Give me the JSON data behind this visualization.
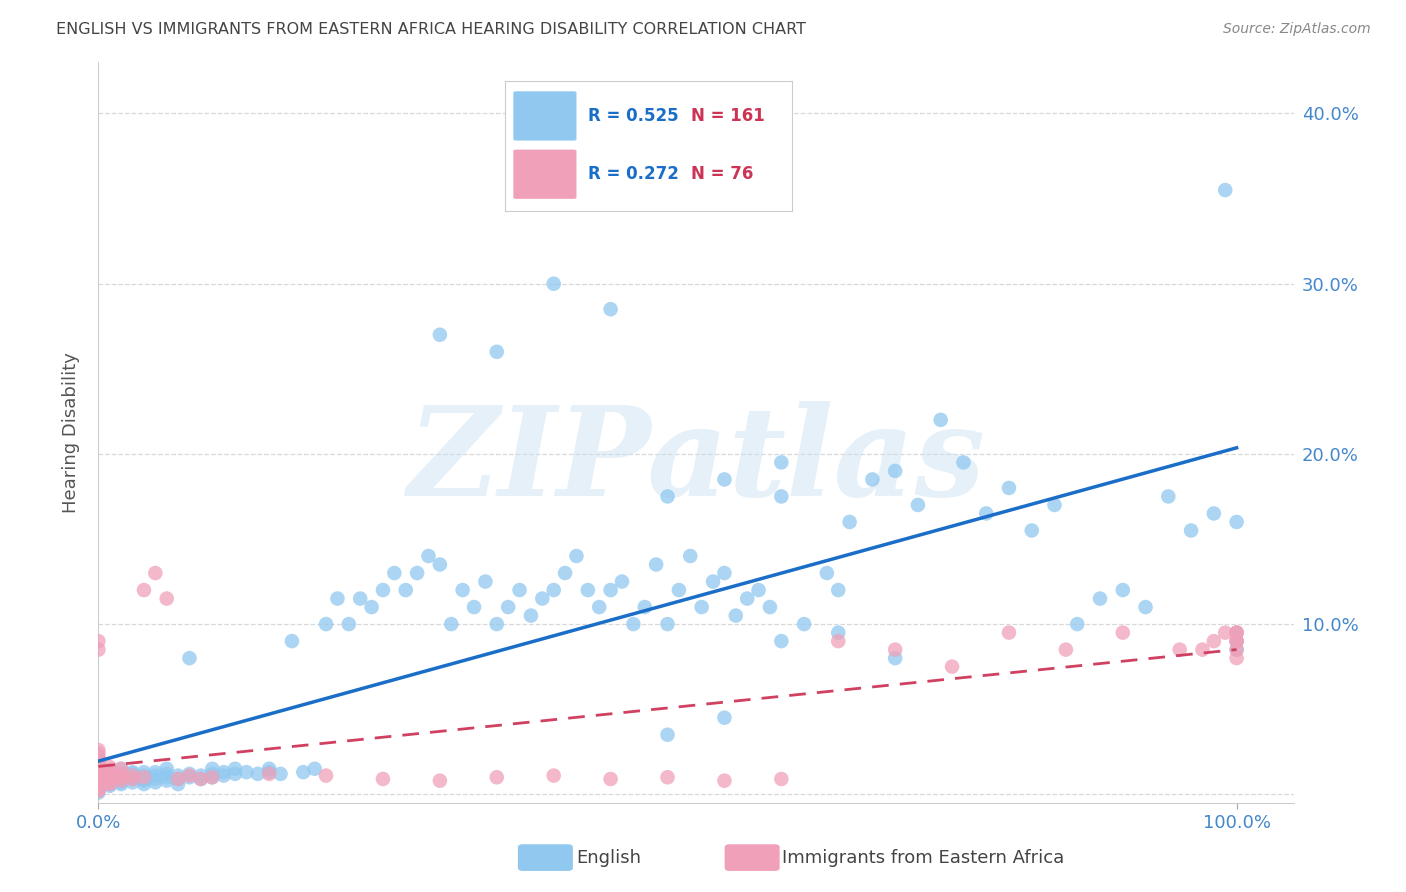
{
  "title": "ENGLISH VS IMMIGRANTS FROM EASTERN AFRICA HEARING DISABILITY CORRELATION CHART",
  "source": "Source: ZipAtlas.com",
  "ylabel": "Hearing Disability",
  "watermark_text": "ZIPatlas",
  "xlim": [
    0.0,
    1.05
  ],
  "ylim": [
    -0.005,
    0.43
  ],
  "yticks": [
    0.0,
    0.1,
    0.2,
    0.3,
    0.4
  ],
  "ytick_labels": [
    "",
    "10.0%",
    "20.0%",
    "30.0%",
    "40.0%"
  ],
  "english_R": 0.525,
  "english_N": 161,
  "immigrants_R": 0.272,
  "immigrants_N": 76,
  "english_color": "#90c8f0",
  "english_line_color": "#1a6ec8",
  "immigrants_color": "#f0a0b8",
  "immigrants_line_color": "#d04060",
  "title_color": "#444444",
  "tick_color": "#4488cc",
  "background_color": "#ffffff",
  "grid_color": "#d8d8d8",
  "english_x": [
    0.0,
    0.0,
    0.0,
    0.0,
    0.0,
    0.0,
    0.0,
    0.0,
    0.0,
    0.0,
    0.0,
    0.0,
    0.0,
    0.0,
    0.0,
    0.0,
    0.0,
    0.0,
    0.0,
    0.0,
    0.01,
    0.01,
    0.01,
    0.01,
    0.01,
    0.01,
    0.01,
    0.01,
    0.01,
    0.01,
    0.02,
    0.02,
    0.02,
    0.02,
    0.02,
    0.02,
    0.02,
    0.02,
    0.03,
    0.03,
    0.03,
    0.03,
    0.03,
    0.03,
    0.04,
    0.04,
    0.04,
    0.04,
    0.04,
    0.05,
    0.05,
    0.05,
    0.05,
    0.06,
    0.06,
    0.06,
    0.06,
    0.07,
    0.07,
    0.07,
    0.08,
    0.08,
    0.08,
    0.09,
    0.09,
    0.1,
    0.1,
    0.1,
    0.11,
    0.11,
    0.12,
    0.12,
    0.13,
    0.14,
    0.15,
    0.15,
    0.16,
    0.17,
    0.18,
    0.19,
    0.2,
    0.21,
    0.22,
    0.23,
    0.24,
    0.25,
    0.26,
    0.27,
    0.28,
    0.29,
    0.3,
    0.31,
    0.32,
    0.33,
    0.34,
    0.35,
    0.36,
    0.37,
    0.38,
    0.39,
    0.4,
    0.41,
    0.42,
    0.43,
    0.44,
    0.45,
    0.46,
    0.47,
    0.48,
    0.49,
    0.5,
    0.51,
    0.52,
    0.53,
    0.54,
    0.55,
    0.56,
    0.57,
    0.58,
    0.59,
    0.6,
    0.62,
    0.64,
    0.65,
    0.66,
    0.68,
    0.7,
    0.72,
    0.74,
    0.76,
    0.78,
    0.8,
    0.82,
    0.84,
    0.86,
    0.88,
    0.9,
    0.92,
    0.94,
    0.96,
    0.98,
    0.99,
    1.0,
    1.0,
    1.0,
    1.0,
    0.5,
    0.55,
    0.6,
    0.65,
    0.7,
    0.3,
    0.35,
    0.4,
    0.45,
    0.5,
    0.55,
    0.6
  ],
  "english_y": [
    0.005,
    0.008,
    0.01,
    0.012,
    0.015,
    0.007,
    0.009,
    0.011,
    0.006,
    0.013,
    0.003,
    0.004,
    0.016,
    0.018,
    0.002,
    0.014,
    0.019,
    0.001,
    0.017,
    0.02,
    0.007,
    0.009,
    0.011,
    0.013,
    0.006,
    0.008,
    0.01,
    0.012,
    0.005,
    0.014,
    0.008,
    0.01,
    0.012,
    0.015,
    0.007,
    0.009,
    0.011,
    0.006,
    0.007,
    0.01,
    0.012,
    0.009,
    0.011,
    0.013,
    0.008,
    0.011,
    0.013,
    0.009,
    0.006,
    0.009,
    0.011,
    0.013,
    0.007,
    0.008,
    0.01,
    0.012,
    0.015,
    0.009,
    0.011,
    0.006,
    0.08,
    0.01,
    0.012,
    0.009,
    0.011,
    0.01,
    0.012,
    0.015,
    0.011,
    0.013,
    0.012,
    0.015,
    0.013,
    0.012,
    0.013,
    0.015,
    0.012,
    0.09,
    0.013,
    0.015,
    0.1,
    0.115,
    0.1,
    0.115,
    0.11,
    0.12,
    0.13,
    0.12,
    0.13,
    0.14,
    0.135,
    0.1,
    0.12,
    0.11,
    0.125,
    0.1,
    0.11,
    0.12,
    0.105,
    0.115,
    0.12,
    0.13,
    0.14,
    0.12,
    0.11,
    0.12,
    0.125,
    0.1,
    0.11,
    0.135,
    0.1,
    0.12,
    0.14,
    0.11,
    0.125,
    0.13,
    0.105,
    0.115,
    0.12,
    0.11,
    0.175,
    0.1,
    0.13,
    0.12,
    0.16,
    0.185,
    0.19,
    0.17,
    0.22,
    0.195,
    0.165,
    0.18,
    0.155,
    0.17,
    0.1,
    0.115,
    0.12,
    0.11,
    0.175,
    0.155,
    0.165,
    0.355,
    0.16,
    0.09,
    0.085,
    0.095,
    0.035,
    0.045,
    0.09,
    0.095,
    0.08,
    0.27,
    0.26,
    0.3,
    0.285,
    0.175,
    0.185,
    0.195
  ],
  "immigrants_x": [
    0.0,
    0.0,
    0.0,
    0.0,
    0.0,
    0.0,
    0.0,
    0.0,
    0.0,
    0.0,
    0.0,
    0.0,
    0.0,
    0.0,
    0.0,
    0.0,
    0.0,
    0.0,
    0.0,
    0.0,
    0.0,
    0.0,
    0.0,
    0.0,
    0.0,
    0.01,
    0.01,
    0.01,
    0.01,
    0.01,
    0.01,
    0.01,
    0.01,
    0.01,
    0.01,
    0.02,
    0.02,
    0.02,
    0.02,
    0.02,
    0.03,
    0.03,
    0.04,
    0.04,
    0.05,
    0.06,
    0.07,
    0.08,
    0.09,
    0.1,
    0.15,
    0.2,
    0.25,
    0.3,
    0.35,
    0.4,
    0.45,
    0.5,
    0.55,
    0.6,
    0.65,
    0.7,
    0.75,
    0.8,
    0.85,
    0.9,
    0.95,
    0.97,
    0.98,
    0.99,
    1.0,
    1.0,
    1.0,
    1.0,
    1.0,
    1.0
  ],
  "immigrants_y": [
    0.005,
    0.008,
    0.01,
    0.012,
    0.015,
    0.007,
    0.009,
    0.011,
    0.013,
    0.006,
    0.014,
    0.016,
    0.018,
    0.003,
    0.004,
    0.002,
    0.02,
    0.022,
    0.024,
    0.026,
    0.09,
    0.085,
    0.007,
    0.009,
    0.011,
    0.007,
    0.009,
    0.011,
    0.013,
    0.006,
    0.008,
    0.01,
    0.012,
    0.014,
    0.016,
    0.008,
    0.01,
    0.012,
    0.015,
    0.01,
    0.009,
    0.011,
    0.01,
    0.12,
    0.13,
    0.115,
    0.009,
    0.011,
    0.009,
    0.01,
    0.012,
    0.011,
    0.009,
    0.008,
    0.01,
    0.011,
    0.009,
    0.01,
    0.008,
    0.009,
    0.09,
    0.085,
    0.075,
    0.095,
    0.085,
    0.095,
    0.085,
    0.085,
    0.09,
    0.095,
    0.08,
    0.09,
    0.095,
    0.085,
    0.09,
    0.095
  ]
}
